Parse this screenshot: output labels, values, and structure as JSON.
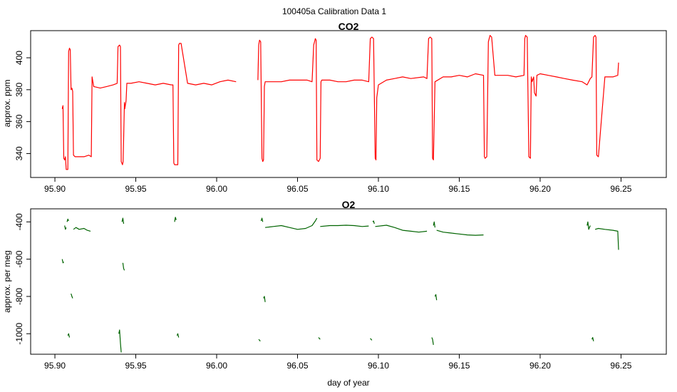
{
  "title": "100405a   Calibration Data 1",
  "chart_data": [
    {
      "type": "line",
      "title": "CO2",
      "xlabel": "",
      "ylabel": "approx. ppm",
      "color": "#ff0000",
      "xlim": [
        95.885,
        96.278
      ],
      "ylim": [
        325,
        417
      ],
      "xticks": [
        95.9,
        95.95,
        96.0,
        96.05,
        96.1,
        96.15,
        96.2,
        96.25
      ],
      "xtick_labels": [
        "95.90",
        "95.95",
        "96.00",
        "96.05",
        "96.10",
        "96.15",
        "96.20",
        "96.25"
      ],
      "yticks": [
        340,
        360,
        380,
        400
      ],
      "ytick_labels": [
        "340",
        "360",
        "380",
        "400"
      ],
      "grid": false,
      "legend": "none",
      "segments": [
        {
          "x": [
            95.9045,
            95.905,
            95.9055,
            95.906,
            95.9065,
            95.907,
            95.908,
            95.9085,
            95.909,
            95.9095,
            95.91,
            95.9105,
            95.911,
            95.9115,
            95.9125,
            95.915,
            95.918,
            95.921,
            95.9225,
            95.923,
            95.924,
            95.928,
            95.932,
            95.936,
            95.9385,
            95.939,
            95.94,
            95.9405,
            95.941,
            95.9418,
            95.9422,
            95.943,
            95.9432,
            95.944,
            95.9445,
            95.947,
            95.952,
            95.957,
            95.962,
            95.967,
            95.972,
            95.973,
            95.9735,
            95.974,
            95.976,
            95.9765,
            95.977,
            95.978,
            95.982,
            95.987,
            95.992,
            95.997,
            96.002,
            96.007,
            96.012
          ],
          "y": [
            368,
            370,
            337,
            336,
            338,
            330,
            330,
            404,
            406,
            405,
            380,
            381,
            379,
            339,
            338,
            338,
            338,
            339,
            338,
            388,
            382,
            381,
            382,
            383,
            384,
            407,
            408,
            407,
            335,
            333,
            335,
            372,
            368,
            373,
            384,
            384,
            385,
            384,
            383,
            384,
            383,
            383,
            334,
            333,
            333,
            408,
            409,
            409,
            384,
            383,
            384,
            383,
            385,
            386,
            385
          ]
        },
        {
          "x": [
            96.0255,
            96.026,
            96.0265,
            96.0272,
            96.028,
            96.0285,
            96.029,
            96.0295,
            96.03,
            96.035,
            96.04,
            96.045,
            96.05,
            96.056,
            96.059,
            96.06,
            96.061,
            96.0615,
            96.062,
            96.063,
            96.064,
            96.0645,
            96.065,
            96.07,
            96.075,
            96.08,
            96.085,
            96.09,
            96.094,
            96.095,
            96.096,
            96.097,
            96.098,
            96.0985,
            96.099,
            96.1,
            96.105,
            96.11,
            96.115,
            96.12,
            96.128,
            96.13,
            96.131,
            96.132,
            96.133,
            96.1335,
            96.134,
            96.135,
            96.14,
            96.145,
            96.15,
            96.155,
            96.16,
            96.165,
            96.1655,
            96.166,
            96.167,
            96.168,
            96.169,
            96.17,
            96.172,
            96.175,
            96.18,
            96.185,
            96.19,
            96.1905,
            96.191,
            96.192,
            96.193,
            96.194,
            96.1945,
            96.195,
            96.196,
            96.1965,
            96.1975,
            96.198,
            96.2,
            96.205,
            96.21,
            96.215,
            96.22,
            96.226,
            96.229,
            96.23,
            96.231,
            96.232,
            96.233,
            96.234,
            96.2345,
            96.235,
            96.236,
            96.24,
            96.245,
            96.248,
            96.2485
          ],
          "y": [
            386,
            408,
            411,
            410,
            337,
            335,
            336,
            382,
            385,
            385,
            385,
            386,
            386,
            386,
            385,
            408,
            412,
            411,
            336,
            335,
            337,
            385,
            386,
            386,
            385,
            385,
            386,
            386,
            385,
            412,
            413,
            412,
            337,
            336,
            375,
            383,
            386,
            387,
            388,
            387,
            388,
            387,
            412,
            413,
            412,
            337,
            336,
            385,
            388,
            388,
            389,
            388,
            390,
            389,
            338,
            337,
            338,
            410,
            414,
            413,
            389,
            389,
            389,
            388,
            389,
            412,
            414,
            413,
            338,
            337,
            388,
            385,
            388,
            378,
            376,
            389,
            390,
            389,
            388,
            387,
            386,
            385,
            383,
            385,
            387,
            388,
            413,
            414,
            413,
            339,
            338,
            388,
            388,
            389,
            397
          ]
        }
      ]
    },
    {
      "type": "line",
      "title": "O2",
      "xlabel": "day of year",
      "ylabel": "approx. per meg",
      "color": "#006400",
      "xlim": [
        95.885,
        96.278
      ],
      "ylim": [
        -1110,
        -330
      ],
      "xticks": [
        95.9,
        95.95,
        96.0,
        96.05,
        96.1,
        96.15,
        96.2,
        96.25
      ],
      "xtick_labels": [
        "95.90",
        "95.95",
        "96.00",
        "96.05",
        "96.10",
        "96.15",
        "96.20",
        "96.25"
      ],
      "yticks": [
        -1000,
        -800,
        -600,
        -400
      ],
      "ytick_labels": [
        "-1000",
        "-800",
        "-600",
        "-400"
      ],
      "grid": false,
      "legend": "none",
      "segments": [
        {
          "x": [
            95.9045,
            95.905,
            95.9055
          ],
          "y": [
            -600,
            -620,
            -615
          ]
        },
        {
          "x": [
            95.906,
            95.9065,
            95.907
          ],
          "y": [
            -420,
            -440,
            -430
          ]
        },
        {
          "x": [
            95.9075,
            95.908,
            95.9085
          ],
          "y": [
            -400,
            -385,
            -395
          ]
        },
        {
          "x": [
            95.908,
            95.9085,
            95.909
          ],
          "y": [
            -1010,
            -1000,
            -1020
          ]
        },
        {
          "x": [
            95.91,
            95.9105,
            95.911
          ],
          "y": [
            -785,
            -800,
            -810
          ]
        },
        {
          "x": [
            95.9115,
            95.913,
            95.915,
            95.918,
            95.92,
            95.922
          ],
          "y": [
            -440,
            -430,
            -440,
            -435,
            -445,
            -450
          ]
        },
        {
          "x": [
            95.9395,
            95.94,
            95.9405,
            95.941
          ],
          "y": [
            -1000,
            -980,
            -1050,
            -1100
          ]
        },
        {
          "x": [
            95.9415,
            95.942,
            95.9425
          ],
          "y": [
            -400,
            -380,
            -410
          ]
        },
        {
          "x": [
            95.942,
            95.9425,
            95.943
          ],
          "y": [
            -620,
            -650,
            -660
          ]
        },
        {
          "x": [
            95.974,
            95.9745,
            95.975
          ],
          "y": [
            -400,
            -375,
            -390
          ]
        },
        {
          "x": [
            95.9755,
            95.976,
            95.9765
          ],
          "y": [
            -1010,
            -1000,
            -1020
          ]
        },
        {
          "x": [
            96.026,
            96.0265,
            96.027
          ],
          "y": [
            -1030,
            -1035,
            -1040
          ]
        },
        {
          "x": [
            96.0275,
            96.028,
            96.0285
          ],
          "y": [
            -395,
            -380,
            -400
          ]
        },
        {
          "x": [
            96.029,
            96.0295,
            96.03
          ],
          "y": [
            -810,
            -800,
            -830
          ]
        },
        {
          "x": [
            96.03,
            96.035,
            96.04,
            96.045,
            96.05,
            96.055,
            96.059,
            96.061,
            96.062
          ],
          "y": [
            -430,
            -425,
            -420,
            -430,
            -440,
            -435,
            -420,
            -395,
            -380
          ]
        },
        {
          "x": [
            96.063,
            96.0635,
            96.064
          ],
          "y": [
            -1020,
            -1025,
            -1030
          ]
        },
        {
          "x": [
            96.064,
            96.07,
            96.075,
            96.08,
            96.085,
            96.09,
            96.094
          ],
          "y": [
            -425,
            -420,
            -420,
            -418,
            -420,
            -425,
            -422
          ]
        },
        {
          "x": [
            96.095,
            96.0955,
            96.096
          ],
          "y": [
            -1025,
            -1030,
            -1035
          ]
        },
        {
          "x": [
            96.0965,
            96.097,
            96.0975
          ],
          "y": [
            -400,
            -395,
            -410
          ]
        },
        {
          "x": [
            96.098,
            96.105,
            96.11,
            96.115,
            96.12,
            96.125,
            96.13
          ],
          "y": [
            -425,
            -418,
            -430,
            -445,
            -450,
            -455,
            -450
          ]
        },
        {
          "x": [
            96.133,
            96.1335,
            96.134
          ],
          "y": [
            -1020,
            -1030,
            -1060
          ]
        },
        {
          "x": [
            96.134,
            96.1345,
            96.135
          ],
          "y": [
            -420,
            -400,
            -430
          ]
        },
        {
          "x": [
            96.135,
            96.1355,
            96.136
          ],
          "y": [
            -800,
            -790,
            -820
          ]
        },
        {
          "x": [
            96.136,
            96.14,
            96.145,
            96.15,
            96.155,
            96.16,
            96.165
          ],
          "y": [
            -445,
            -455,
            -460,
            -465,
            -470,
            -472,
            -470
          ]
        },
        {
          "x": [
            96.229,
            96.2295,
            96.23,
            96.231
          ],
          "y": [
            -420,
            -400,
            -440,
            -420
          ]
        },
        {
          "x": [
            96.232,
            96.2325,
            96.233
          ],
          "y": [
            -1030,
            -1020,
            -1040
          ]
        },
        {
          "x": [
            96.234,
            96.236,
            96.24,
            96.245,
            96.248,
            96.2485
          ],
          "y": [
            -440,
            -435,
            -440,
            -445,
            -450,
            -550
          ]
        }
      ]
    }
  ]
}
